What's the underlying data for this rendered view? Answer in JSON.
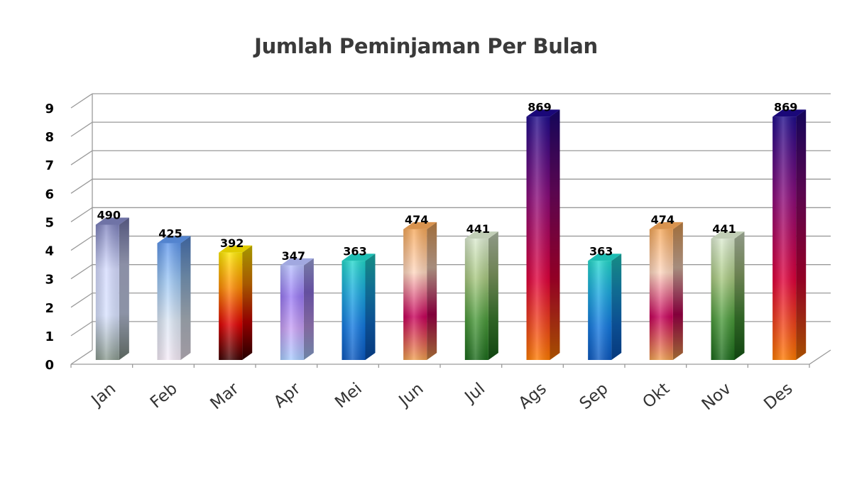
{
  "chart_data": {
    "type": "bar",
    "title": "Jumlah Peminjaman Per Bulan",
    "categories": [
      "Jan",
      "Feb",
      "Mar",
      "Apr",
      "Mei",
      "Jun",
      "Jul",
      "Ags",
      "Sep",
      "Okt",
      "Nov",
      "Des"
    ],
    "values": [
      4.9,
      4.25,
      3.92,
      3.47,
      3.63,
      4.74,
      4.41,
      8.69,
      3.63,
      4.74,
      4.41,
      8.69
    ],
    "data_labels": [
      "490",
      "425",
      "392",
      "347",
      "363",
      "474",
      "441",
      "869",
      "363",
      "474",
      "441",
      "869"
    ],
    "yticks": [
      "0",
      "1",
      "2",
      "3",
      "4",
      "5",
      "6",
      "7",
      "8",
      "9"
    ],
    "ylim": [
      0,
      9
    ],
    "grid": true,
    "style": "3d-cylinder-bars",
    "bar_gradients": [
      [
        "#7f83be",
        "#d6dcff",
        "#d8e2ff",
        "#8a9a8f"
      ],
      [
        "#5f97ec",
        "#9fc9f5",
        "#dde8f5",
        "#f6ecf8"
      ],
      [
        "#ffe800",
        "#ff8a00",
        "#e00000",
        "#3a0000"
      ],
      [
        "#b8c0ff",
        "#9a7af5",
        "#c8a0f5",
        "#a8ccff"
      ],
      [
        "#22d8cc",
        "#1aa8e0",
        "#1278e0",
        "#0a58c0"
      ],
      [
        "#f6a85a",
        "#ffd8c0",
        "#c8005a",
        "#f0a050"
      ],
      [
        "#dcebd0",
        "#a8c880",
        "#4a9a3a",
        "#1a6a1a"
      ],
      [
        "#1e0a8a",
        "#8a0a7a",
        "#e0003a",
        "#ff7a00"
      ],
      [
        "#22d8cc",
        "#1aa8e0",
        "#1278e0",
        "#0a58c0"
      ],
      [
        "#f6a85a",
        "#ffd8c0",
        "#c8005a",
        "#f0a050"
      ],
      [
        "#dcebd0",
        "#a8c880",
        "#4a9a3a",
        "#1a6a1a"
      ],
      [
        "#1e0a8a",
        "#8a0a7a",
        "#e0003a",
        "#ff7a00"
      ]
    ]
  }
}
